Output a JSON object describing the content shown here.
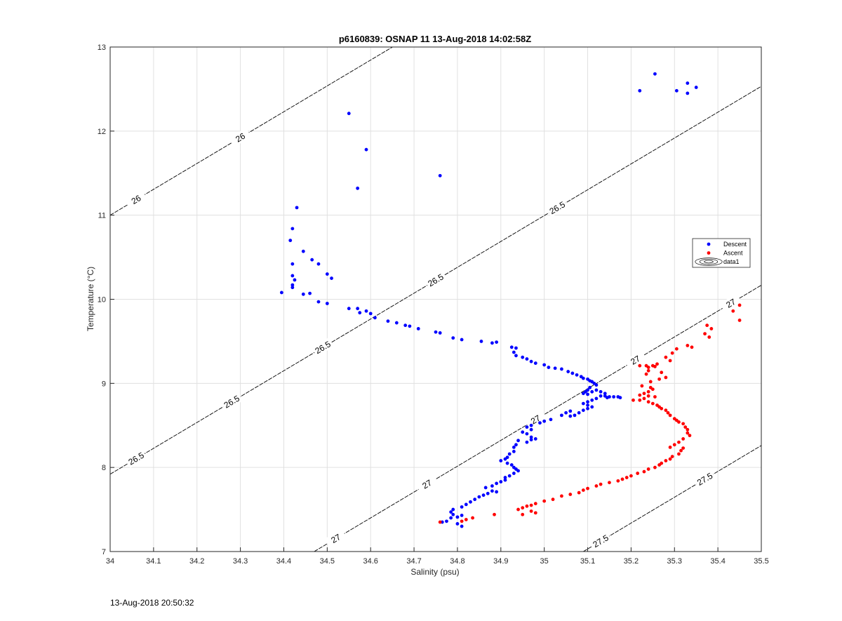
{
  "chart_data": {
    "type": "scatter",
    "title": "p6160839: OSNAP 11 13-Aug-2018 14:02:58Z",
    "xlabel": "Salinity (psu)",
    "ylabel": "Temperature (°C)",
    "xlim": [
      34,
      35.5
    ],
    "ylim": [
      7,
      13
    ],
    "x_ticks": [
      34,
      34.1,
      34.2,
      34.3,
      34.4,
      34.5,
      34.6,
      34.7,
      34.8,
      34.9,
      35,
      35.1,
      35.2,
      35.3,
      35.4,
      35.5
    ],
    "x_tick_labels": [
      "34",
      "34.1",
      "34.2",
      "34.3",
      "34.4",
      "34.5",
      "34.6",
      "34.7",
      "34.8",
      "34.9",
      "35",
      "35.1",
      "35.2",
      "35.3",
      "35.4",
      "35.5"
    ],
    "y_ticks": [
      7,
      8,
      9,
      10,
      11,
      12,
      13
    ],
    "y_tick_labels": [
      "7",
      "8",
      "9",
      "10",
      "11",
      "12",
      "13"
    ],
    "grid": true,
    "legend_position": "right",
    "legend": [
      "Descent",
      "Ascent",
      "data1"
    ],
    "colors": {
      "Descent": "#0000ff",
      "Ascent": "#ff0000",
      "contour": "#000000",
      "grid": "#e0e0e0",
      "axis": "#262626"
    },
    "series": [
      {
        "name": "Descent",
        "marker": "dot",
        "points": [
          [
            34.55,
            12.21
          ],
          [
            34.59,
            11.78
          ],
          [
            34.57,
            11.32
          ],
          [
            34.76,
            11.47
          ],
          [
            35.22,
            12.48
          ],
          [
            35.255,
            12.68
          ],
          [
            35.305,
            12.48
          ],
          [
            35.33,
            12.45
          ],
          [
            35.33,
            12.57
          ],
          [
            35.35,
            12.52
          ],
          [
            34.43,
            11.09
          ],
          [
            34.42,
            10.84
          ],
          [
            34.415,
            10.7
          ],
          [
            34.445,
            10.57
          ],
          [
            34.465,
            10.47
          ],
          [
            34.48,
            10.42
          ],
          [
            34.42,
            10.42
          ],
          [
            34.42,
            10.28
          ],
          [
            34.425,
            10.23
          ],
          [
            34.42,
            10.17
          ],
          [
            34.42,
            10.14
          ],
          [
            34.395,
            10.08
          ],
          [
            34.445,
            10.06
          ],
          [
            34.46,
            10.07
          ],
          [
            34.5,
            10.3
          ],
          [
            34.51,
            10.25
          ],
          [
            34.48,
            9.97
          ],
          [
            34.5,
            9.95
          ],
          [
            34.55,
            9.89
          ],
          [
            34.57,
            9.89
          ],
          [
            34.575,
            9.84
          ],
          [
            34.59,
            9.86
          ],
          [
            34.6,
            9.83
          ],
          [
            34.61,
            9.78
          ],
          [
            34.64,
            9.74
          ],
          [
            34.66,
            9.72
          ],
          [
            34.68,
            9.69
          ],
          [
            34.69,
            9.68
          ],
          [
            34.71,
            9.65
          ],
          [
            34.75,
            9.61
          ],
          [
            34.76,
            9.6
          ],
          [
            34.79,
            9.54
          ],
          [
            34.81,
            9.52
          ],
          [
            34.855,
            9.5
          ],
          [
            34.88,
            9.48
          ],
          [
            34.89,
            9.49
          ],
          [
            34.925,
            9.43
          ],
          [
            34.935,
            9.42
          ],
          [
            34.93,
            9.37
          ],
          [
            34.935,
            9.33
          ],
          [
            34.95,
            9.31
          ],
          [
            34.96,
            9.29
          ],
          [
            34.97,
            9.26
          ],
          [
            34.98,
            9.24
          ],
          [
            35.0,
            9.22
          ],
          [
            35.01,
            9.19
          ],
          [
            35.025,
            9.18
          ],
          [
            35.04,
            9.17
          ],
          [
            35.055,
            9.14
          ],
          [
            35.065,
            9.12
          ],
          [
            35.075,
            9.1
          ],
          [
            35.085,
            9.08
          ],
          [
            35.09,
            9.06
          ],
          [
            35.1,
            9.05
          ],
          [
            35.105,
            9.03
          ],
          [
            35.11,
            9.02
          ],
          [
            35.115,
            9.0
          ],
          [
            35.12,
            8.98
          ],
          [
            35.105,
            8.95
          ],
          [
            35.1,
            8.92
          ],
          [
            35.095,
            8.9
          ],
          [
            35.09,
            8.88
          ],
          [
            35.1,
            8.87
          ],
          [
            35.11,
            8.9
          ],
          [
            35.12,
            8.92
          ],
          [
            35.13,
            8.9
          ],
          [
            35.14,
            8.88
          ],
          [
            35.13,
            8.85
          ],
          [
            35.14,
            8.85
          ],
          [
            35.15,
            8.84
          ],
          [
            35.16,
            8.84
          ],
          [
            35.17,
            8.84
          ],
          [
            35.175,
            8.83
          ],
          [
            35.145,
            8.83
          ],
          [
            35.12,
            8.82
          ],
          [
            35.11,
            8.8
          ],
          [
            35.1,
            8.78
          ],
          [
            35.09,
            8.76
          ],
          [
            35.1,
            8.74
          ],
          [
            35.11,
            8.72
          ],
          [
            35.1,
            8.7
          ],
          [
            35.09,
            8.68
          ],
          [
            35.08,
            8.65
          ],
          [
            35.07,
            8.62
          ],
          [
            35.06,
            8.61
          ],
          [
            35.04,
            8.62
          ],
          [
            35.05,
            8.65
          ],
          [
            35.06,
            8.67
          ],
          [
            35.015,
            8.57
          ],
          [
            35.0,
            8.55
          ],
          [
            34.99,
            8.53
          ],
          [
            34.97,
            8.5
          ],
          [
            34.96,
            8.48
          ],
          [
            34.97,
            8.45
          ],
          [
            34.95,
            8.42
          ],
          [
            34.96,
            8.4
          ],
          [
            34.97,
            8.36
          ],
          [
            34.97,
            8.33
          ],
          [
            34.98,
            8.34
          ],
          [
            34.96,
            8.3
          ],
          [
            34.94,
            8.32
          ],
          [
            34.935,
            8.27
          ],
          [
            34.93,
            8.24
          ],
          [
            34.93,
            8.19
          ],
          [
            34.92,
            8.16
          ],
          [
            34.915,
            8.12
          ],
          [
            34.91,
            8.1
          ],
          [
            34.9,
            8.08
          ],
          [
            34.915,
            8.05
          ],
          [
            34.925,
            8.03
          ],
          [
            34.93,
            8.0
          ],
          [
            34.935,
            7.98
          ],
          [
            34.94,
            7.96
          ],
          [
            34.93,
            7.93
          ],
          [
            34.92,
            7.9
          ],
          [
            34.91,
            7.88
          ],
          [
            34.91,
            7.85
          ],
          [
            34.9,
            7.83
          ],
          [
            34.89,
            7.81
          ],
          [
            34.88,
            7.78
          ],
          [
            34.865,
            7.76
          ],
          [
            34.88,
            7.72
          ],
          [
            34.89,
            7.71
          ],
          [
            34.87,
            7.69
          ],
          [
            34.86,
            7.67
          ],
          [
            34.85,
            7.65
          ],
          [
            34.84,
            7.62
          ],
          [
            34.83,
            7.59
          ],
          [
            34.82,
            7.56
          ],
          [
            34.81,
            7.53
          ],
          [
            34.79,
            7.5
          ],
          [
            34.785,
            7.47
          ],
          [
            34.79,
            7.44
          ],
          [
            34.8,
            7.41
          ],
          [
            34.81,
            7.43
          ],
          [
            34.785,
            7.4
          ],
          [
            34.775,
            7.36
          ],
          [
            34.765,
            7.35
          ],
          [
            34.8,
            7.33
          ],
          [
            34.81,
            7.3
          ]
        ]
      },
      {
        "name": "Ascent",
        "marker": "dot",
        "points": [
          [
            35.45,
            9.93
          ],
          [
            35.435,
            9.86
          ],
          [
            35.45,
            9.75
          ],
          [
            35.375,
            9.69
          ],
          [
            35.385,
            9.65
          ],
          [
            35.37,
            9.59
          ],
          [
            35.38,
            9.55
          ],
          [
            35.33,
            9.45
          ],
          [
            35.34,
            9.43
          ],
          [
            35.305,
            9.41
          ],
          [
            35.295,
            9.36
          ],
          [
            35.28,
            9.31
          ],
          [
            35.29,
            9.27
          ],
          [
            35.26,
            9.23
          ],
          [
            35.25,
            9.21
          ],
          [
            35.235,
            9.21
          ],
          [
            35.22,
            9.21
          ],
          [
            35.24,
            9.19
          ],
          [
            35.255,
            9.2
          ],
          [
            35.24,
            9.15
          ],
          [
            35.235,
            9.11
          ],
          [
            35.27,
            9.13
          ],
          [
            35.28,
            9.07
          ],
          [
            35.265,
            9.05
          ],
          [
            35.245,
            9.02
          ],
          [
            35.225,
            8.97
          ],
          [
            35.245,
            8.95
          ],
          [
            35.25,
            8.93
          ],
          [
            35.24,
            8.9
          ],
          [
            35.23,
            8.88
          ],
          [
            35.22,
            8.86
          ],
          [
            35.24,
            8.85
          ],
          [
            35.255,
            8.84
          ],
          [
            35.23,
            8.82
          ],
          [
            35.22,
            8.8
          ],
          [
            35.205,
            8.8
          ],
          [
            35.24,
            8.78
          ],
          [
            35.25,
            8.76
          ],
          [
            35.26,
            8.74
          ],
          [
            35.265,
            8.72
          ],
          [
            35.27,
            8.7
          ],
          [
            35.28,
            8.68
          ],
          [
            35.285,
            8.65
          ],
          [
            35.29,
            8.62
          ],
          [
            35.3,
            8.58
          ],
          [
            35.305,
            8.56
          ],
          [
            35.31,
            8.54
          ],
          [
            35.32,
            8.52
          ],
          [
            35.325,
            8.48
          ],
          [
            35.33,
            8.45
          ],
          [
            35.33,
            8.41
          ],
          [
            35.335,
            8.38
          ],
          [
            35.32,
            8.34
          ],
          [
            35.31,
            8.3
          ],
          [
            35.3,
            8.27
          ],
          [
            35.29,
            8.24
          ],
          [
            35.32,
            8.23
          ],
          [
            35.315,
            8.2
          ],
          [
            35.31,
            8.16
          ],
          [
            35.295,
            8.13
          ],
          [
            35.29,
            8.1
          ],
          [
            35.28,
            8.08
          ],
          [
            35.27,
            8.05
          ],
          [
            35.265,
            8.03
          ],
          [
            35.255,
            8.0
          ],
          [
            35.24,
            7.98
          ],
          [
            35.23,
            7.95
          ],
          [
            35.215,
            7.93
          ],
          [
            35.2,
            7.9
          ],
          [
            35.19,
            7.88
          ],
          [
            35.18,
            7.86
          ],
          [
            35.17,
            7.84
          ],
          [
            35.15,
            7.82
          ],
          [
            35.13,
            7.8
          ],
          [
            35.12,
            7.78
          ],
          [
            35.1,
            7.75
          ],
          [
            35.09,
            7.73
          ],
          [
            35.08,
            7.7
          ],
          [
            35.06,
            7.68
          ],
          [
            35.04,
            7.66
          ],
          [
            35.02,
            7.62
          ],
          [
            35.0,
            7.6
          ],
          [
            34.98,
            7.57
          ],
          [
            34.97,
            7.55
          ],
          [
            34.96,
            7.54
          ],
          [
            34.95,
            7.52
          ],
          [
            34.94,
            7.5
          ],
          [
            34.97,
            7.48
          ],
          [
            34.98,
            7.46
          ],
          [
            34.95,
            7.44
          ],
          [
            34.885,
            7.44
          ],
          [
            34.835,
            7.4
          ],
          [
            34.82,
            7.38
          ],
          [
            34.81,
            7.36
          ],
          [
            34.76,
            7.35
          ]
        ]
      }
    ],
    "contours": [
      {
        "level": "26",
        "x0": 34.0,
        "y0": 11.0,
        "labels": [
          34.06,
          34.3
        ]
      },
      {
        "level": "26.5",
        "x0": 34.0,
        "y0": 7.92,
        "labels": [
          34.06,
          34.28,
          34.49,
          34.75,
          35.03
        ]
      },
      {
        "level": "27",
        "x0": 34.47,
        "y0": 7.0,
        "labels": [
          34.52,
          34.73,
          34.98,
          35.21,
          35.43
        ]
      },
      {
        "level": "27.5",
        "x0": 35.09,
        "y0": 7.0,
        "labels": [
          35.13,
          35.37
        ]
      }
    ],
    "contour_slope": 3.075
  },
  "footer": {
    "timestamp": "13-Aug-2018 20:50:32"
  }
}
